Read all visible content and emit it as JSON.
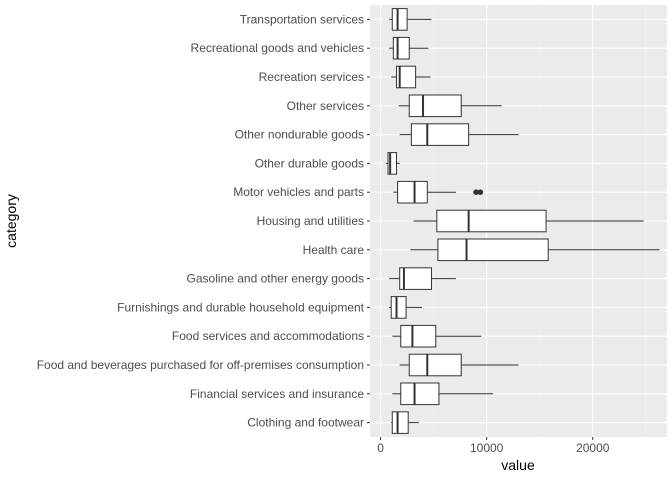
{
  "chart_data": {
    "type": "boxplot",
    "orientation": "horizontal",
    "xlabel": "value",
    "ylabel": "category",
    "xlim": [
      -1000,
      27000
    ],
    "xticks": [
      0,
      10000,
      20000
    ],
    "xtick_labels": [
      "0",
      "10000",
      "20000"
    ],
    "grid": true,
    "theme_background": "#ebebeb",
    "categories": [
      "Clothing and footwear",
      "Financial services and insurance",
      "Food and beverages purchased for off-premises consumption",
      "Food services and accommodations",
      "Furnishings and durable household equipment",
      "Gasoline and other energy goods",
      "Health care",
      "Housing and utilities",
      "Motor vehicles and parts",
      "Other durable goods",
      "Other nondurable goods",
      "Other services",
      "Recreation services",
      "Recreational goods and vehicles",
      "Transportation services"
    ],
    "boxes": [
      {
        "category": "Clothing and footwear",
        "whisker_low": 1000,
        "q1": 1100,
        "median": 1600,
        "q3": 2600,
        "whisker_high": 3600,
        "outliers": []
      },
      {
        "category": "Financial services and insurance",
        "whisker_low": 1100,
        "q1": 1900,
        "median": 3200,
        "q3": 5500,
        "whisker_high": 10600,
        "outliers": []
      },
      {
        "category": "Food and beverages purchased for off-premises consumption",
        "whisker_low": 1800,
        "q1": 2700,
        "median": 4400,
        "q3": 7600,
        "whisker_high": 13000,
        "outliers": []
      },
      {
        "category": "Food services and accommodations",
        "whisker_low": 1100,
        "q1": 1900,
        "median": 3000,
        "q3": 5200,
        "whisker_high": 9500,
        "outliers": []
      },
      {
        "category": "Furnishings and durable household equipment",
        "whisker_low": 800,
        "q1": 1000,
        "median": 1500,
        "q3": 2400,
        "whisker_high": 3900,
        "outliers": []
      },
      {
        "category": "Gasoline and other energy goods",
        "whisker_low": 800,
        "q1": 1800,
        "median": 2200,
        "q3": 4800,
        "whisker_high": 7100,
        "outliers": []
      },
      {
        "category": "Health care",
        "whisker_low": 2800,
        "q1": 5400,
        "median": 8100,
        "q3": 15800,
        "whisker_high": 26300,
        "outliers": []
      },
      {
        "category": "Housing and utilities",
        "whisker_low": 3100,
        "q1": 5300,
        "median": 8300,
        "q3": 15600,
        "whisker_high": 24800,
        "outliers": []
      },
      {
        "category": "Motor vehicles and parts",
        "whisker_low": 1200,
        "q1": 1600,
        "median": 3200,
        "q3": 4400,
        "whisker_high": 7100,
        "outliers": [
          9000,
          9400
        ]
      },
      {
        "category": "Other durable goods",
        "whisker_low": 500,
        "q1": 700,
        "median": 900,
        "q3": 1500,
        "whisker_high": 1800,
        "outliers": []
      },
      {
        "category": "Other nondurable goods",
        "whisker_low": 1800,
        "q1": 2900,
        "median": 4400,
        "q3": 8300,
        "whisker_high": 13000,
        "outliers": []
      },
      {
        "category": "Other services",
        "whisker_low": 1700,
        "q1": 2700,
        "median": 4000,
        "q3": 7600,
        "whisker_high": 11400,
        "outliers": []
      },
      {
        "category": "Recreation services",
        "whisker_low": 1000,
        "q1": 1500,
        "median": 1800,
        "q3": 3300,
        "whisker_high": 4700,
        "outliers": []
      },
      {
        "category": "Recreational goods and vehicles",
        "whisker_low": 800,
        "q1": 1200,
        "median": 1600,
        "q3": 2700,
        "whisker_high": 4500,
        "outliers": []
      },
      {
        "category": "Transportation services",
        "whisker_low": 800,
        "q1": 1100,
        "median": 1600,
        "q3": 2500,
        "whisker_high": 4800,
        "outliers": []
      }
    ]
  }
}
